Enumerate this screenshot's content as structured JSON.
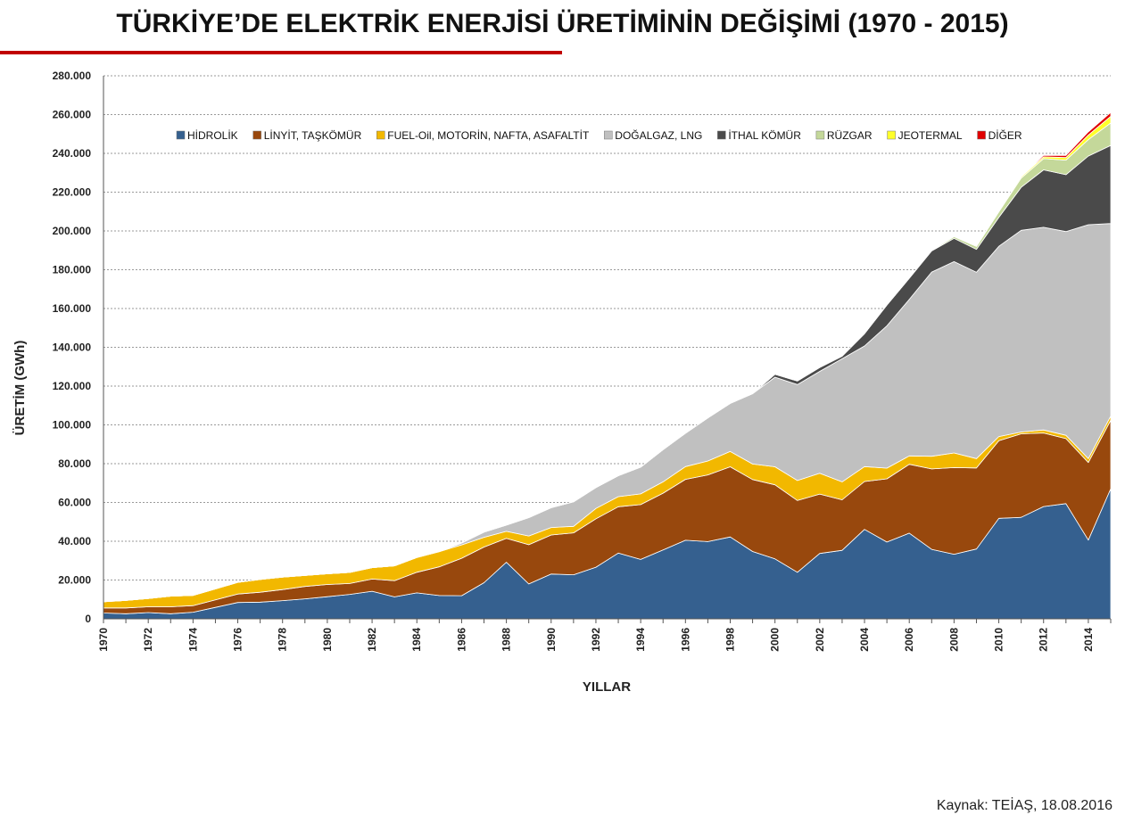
{
  "title": "TÜRKİYE’DE ELEKTRİK ENERJİSİ ÜRETİMİNİN DEĞİŞİMİ (1970 - 2015)",
  "source": "Kaynak: TEİAŞ, 18.08.2016",
  "chart_data": {
    "type": "area",
    "stacked": true,
    "title": "TÜRKİYE’DE ELEKTRİK ENERJİSİ ÜRETİMİNİN DEĞİŞİMİ (1970 - 2015)",
    "xlabel": "YILLAR",
    "ylabel": "ÜRETİM (GWh)",
    "ylim": [
      0,
      280000
    ],
    "yticks": [
      0,
      20000,
      40000,
      60000,
      80000,
      100000,
      120000,
      140000,
      160000,
      180000,
      200000,
      220000,
      240000,
      260000,
      280000
    ],
    "ytick_labels": [
      "0",
      "20.000",
      "40.000",
      "60.000",
      "80.000",
      "100.000",
      "120.000",
      "140.000",
      "160.000",
      "180.000",
      "200.000",
      "220.000",
      "240.000",
      "260.000",
      "280.000"
    ],
    "xtick_labels": [
      "1970",
      "1972",
      "1974",
      "1976",
      "1978",
      "1980",
      "1982",
      "1984",
      "1986",
      "1988",
      "1990",
      "1992",
      "1994",
      "1996",
      "1998",
      "2000",
      "2002",
      "2004",
      "2006",
      "2008",
      "2010",
      "2012",
      "2014"
    ],
    "grid": true,
    "legend_position": "top",
    "x": [
      1970,
      1971,
      1972,
      1973,
      1974,
      1975,
      1976,
      1977,
      1978,
      1979,
      1980,
      1981,
      1982,
      1983,
      1984,
      1985,
      1986,
      1987,
      1988,
      1989,
      1990,
      1991,
      1992,
      1993,
      1994,
      1995,
      1996,
      1997,
      1998,
      1999,
      2000,
      2001,
      2002,
      2003,
      2004,
      2005,
      2006,
      2007,
      2008,
      2009,
      2010,
      2011,
      2012,
      2013,
      2014,
      2015
    ],
    "series": [
      {
        "name": "HİDROLİK",
        "color": "#35608f",
        "values": [
          3000,
          2600,
          3200,
          2600,
          3400,
          5900,
          8400,
          8600,
          9400,
          10300,
          11400,
          12600,
          14200,
          11300,
          13400,
          12000,
          11900,
          18600,
          29200,
          18000,
          23100,
          22700,
          26600,
          33900,
          30600,
          35500,
          40500,
          39800,
          42200,
          34700,
          30900,
          24000,
          33700,
          35300,
          46100,
          39600,
          44200,
          35800,
          33300,
          36000,
          51800,
          52300,
          57900,
          59400,
          40600,
          67100
        ]
      },
      {
        "name": "LİNYİT, TAŞKÖMÜR",
        "color": "#98480d",
        "values": [
          2600,
          3000,
          3000,
          3600,
          3400,
          3900,
          4400,
          5100,
          5700,
          6400,
          6300,
          5600,
          6300,
          8400,
          10600,
          14800,
          19300,
          18400,
          12300,
          20200,
          20100,
          21600,
          25000,
          23900,
          28300,
          29300,
          31400,
          34400,
          36200,
          37100,
          38200,
          37000,
          30600,
          26100,
          24700,
          32600,
          35500,
          41500,
          44700,
          41800,
          40000,
          43100,
          37900,
          33500,
          40000,
          35300
        ]
      },
      {
        "name": "FUEL-Oil, MOTORİN, NAFTA, ASAFALTİT",
        "color": "#f2b800",
        "values": [
          3200,
          3900,
          4300,
          5500,
          5300,
          5600,
          6000,
          6600,
          6400,
          5700,
          5500,
          5700,
          5900,
          7600,
          7600,
          7800,
          6900,
          5000,
          3600,
          4500,
          3900,
          3400,
          5300,
          5200,
          5500,
          5800,
          6600,
          7200,
          7900,
          8000,
          9300,
          10300,
          10800,
          9200,
          7700,
          5500,
          4300,
          6500,
          7500,
          4800,
          2200,
          900,
          1600,
          1700,
          2000,
          2200
        ]
      },
      {
        "name": "DOĞALGAZ, LNG",
        "color": "#c0c0c0",
        "values": [
          0,
          0,
          0,
          0,
          0,
          0,
          0,
          0,
          0,
          0,
          0,
          0,
          0,
          0,
          0,
          60,
          1000,
          2700,
          3200,
          9500,
          10200,
          12600,
          10800,
          10800,
          13800,
          16600,
          17200,
          22200,
          24800,
          36300,
          46200,
          49500,
          52500,
          63500,
          62200,
          73400,
          80700,
          95000,
          98700,
          96100,
          98100,
          104000,
          104500,
          105100,
          120600,
          99200
        ]
      },
      {
        "name": "İTHAL KÖMÜR",
        "color": "#4a4a4a",
        "values": [
          0,
          0,
          0,
          0,
          0,
          0,
          0,
          0,
          0,
          0,
          0,
          0,
          0,
          0,
          0,
          0,
          0,
          0,
          0,
          0,
          0,
          0,
          0,
          0,
          0,
          0,
          0,
          0,
          0,
          0,
          1500,
          1800,
          2000,
          1300,
          6300,
          10700,
          10900,
          10900,
          12000,
          11800,
          14900,
          22200,
          29600,
          29300,
          35400,
          40300
        ]
      },
      {
        "name": "RÜZGAR",
        "color": "#c4d89a",
        "values": [
          0,
          0,
          0,
          0,
          0,
          0,
          0,
          0,
          0,
          0,
          0,
          0,
          0,
          0,
          0,
          0,
          0,
          0,
          0,
          0,
          0,
          0,
          0,
          0,
          0,
          0,
          0,
          0,
          0,
          0,
          30,
          60,
          50,
          60,
          60,
          60,
          130,
          360,
          850,
          1500,
          2900,
          4700,
          5800,
          7500,
          8500,
          11600
        ]
      },
      {
        "name": "JEOTERMAL",
        "color": "#ffff2a",
        "values": [
          0,
          0,
          0,
          0,
          0,
          0,
          0,
          0,
          0,
          0,
          0,
          0,
          0,
          0,
          0,
          0,
          0,
          0,
          0,
          0,
          0,
          0,
          0,
          0,
          0,
          0,
          0,
          0,
          0,
          0,
          0,
          0,
          0,
          0,
          0,
          0,
          0,
          0,
          160,
          440,
          670,
          690,
          900,
          1360,
          2360,
          3420
        ]
      },
      {
        "name": "DİĞER",
        "color": "#e00000",
        "values": [
          0,
          0,
          0,
          0,
          0,
          0,
          0,
          0,
          0,
          0,
          0,
          0,
          0,
          0,
          0,
          0,
          0,
          0,
          0,
          0,
          0,
          0,
          0,
          0,
          0,
          0,
          0,
          0,
          0,
          0,
          0,
          0,
          0,
          0,
          0,
          0,
          0,
          0,
          0,
          0,
          0,
          0,
          800,
          1100,
          1600,
          2000
        ]
      }
    ]
  }
}
